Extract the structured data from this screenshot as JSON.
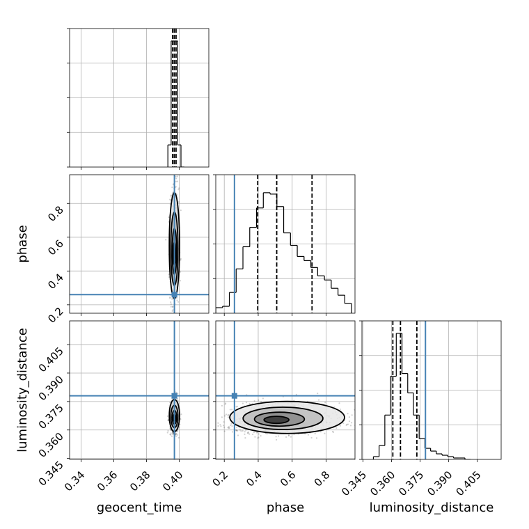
{
  "chart_data": {
    "type": "corner",
    "parameters": [
      "geocent_time",
      "phase",
      "luminosity_distance"
    ],
    "grid": true,
    "colors": {
      "truth": "#4682b4",
      "hist": "#000000",
      "contour": "#000000",
      "grid": "#b0b0b0"
    },
    "truths": {
      "geocent_time": 0.397,
      "phase": 0.26,
      "luminosity_distance": 0.378
    },
    "panels": [
      {
        "id": "hist_geocent_time",
        "type": "histogram",
        "xlim": [
          0.333,
          0.418
        ],
        "xticks": [
          0.34,
          0.36,
          0.38,
          0.4
        ],
        "tick_labels_shown": false,
        "bins": [
          0.393,
          0.395,
          0.397,
          0.399,
          0.401,
          0.403
        ],
        "counts": [
          0.16,
          0.91,
          0.91,
          0.16,
          0.0
        ],
        "quantiles": [
          0.3959,
          0.3969,
          0.398
        ]
      },
      {
        "id": "hist_phase",
        "type": "histogram",
        "xlim": [
          0.15,
          0.97
        ],
        "xticks": [
          0.2,
          0.4,
          0.6,
          0.8
        ],
        "tick_labels_shown": false,
        "bins": [
          0.15,
          0.19,
          0.23,
          0.27,
          0.31,
          0.35,
          0.39,
          0.43,
          0.47,
          0.51,
          0.55,
          0.59,
          0.63,
          0.67,
          0.71,
          0.75,
          0.79,
          0.83,
          0.87,
          0.91,
          0.95
        ],
        "counts": [
          0.04,
          0.05,
          0.15,
          0.32,
          0.48,
          0.62,
          0.76,
          0.87,
          0.86,
          0.77,
          0.58,
          0.49,
          0.41,
          0.38,
          0.33,
          0.27,
          0.24,
          0.18,
          0.13,
          0.07
        ],
        "quantiles": [
          0.397,
          0.509,
          0.717
        ],
        "truth": 0.26
      },
      {
        "id": "hist_luminosity_distance",
        "type": "histogram",
        "xlim": [
          0.3445,
          0.4175
        ],
        "xticks": [
          0.345,
          0.36,
          0.375,
          0.39,
          0.405
        ],
        "xtick_labels": [
          "0.345",
          "0.360",
          "0.375",
          "0.390",
          "0.405"
        ],
        "xlabel": "luminosity_distance",
        "bins": [
          0.3505,
          0.3535,
          0.3565,
          0.3595,
          0.3625,
          0.3655,
          0.3685,
          0.3715,
          0.3745,
          0.3775,
          0.3805,
          0.3835,
          0.3865,
          0.3895,
          0.3925,
          0.3955,
          0.3985,
          0.4015
        ],
        "counts": [
          0.02,
          0.1,
          0.32,
          0.6,
          0.91,
          0.62,
          0.48,
          0.32,
          0.15,
          0.08,
          0.06,
          0.04,
          0.03,
          0.02,
          0.01,
          0.01,
          0.0
        ],
        "quantiles": [
          0.3607,
          0.3647,
          0.3733
        ],
        "truth": 0.3778
      },
      {
        "id": "scatter_geocent_time_phase",
        "type": "2d-density",
        "x": "geocent_time",
        "y": "phase",
        "xlim": [
          0.333,
          0.418
        ],
        "ylim": [
          0.15,
          0.97
        ],
        "yticks": [
          0.2,
          0.4,
          0.6,
          0.8
        ],
        "ytick_labels": [
          "0.2",
          "0.4",
          "0.6",
          "0.8"
        ],
        "ylabel": "phase",
        "center": [
          0.397,
          0.49
        ],
        "spread": [
          0.0013,
          0.13
        ],
        "skew": 0.55
      },
      {
        "id": "scatter_geocent_time_luminosity_distance",
        "type": "2d-density",
        "x": "geocent_time",
        "y": "luminosity_distance",
        "xlim": [
          0.333,
          0.418
        ],
        "ylim": [
          0.3445,
          0.4175
        ],
        "xticks": [
          0.34,
          0.36,
          0.38,
          0.4
        ],
        "xtick_labels": [
          "0.34",
          "0.36",
          "0.38",
          "0.40"
        ],
        "yticks": [
          0.345,
          0.36,
          0.375,
          0.39,
          0.405
        ],
        "ytick_labels": [
          "0.345",
          "0.360",
          "0.375",
          "0.390",
          "0.405"
        ],
        "xlabel": "geocent_time",
        "ylabel": "luminosity_distance",
        "center": [
          0.397,
          0.366
        ],
        "spread": [
          0.0013,
          0.0035
        ],
        "skew": 0.5
      },
      {
        "id": "scatter_phase_luminosity_distance",
        "type": "2d-density",
        "x": "phase",
        "y": "luminosity_distance",
        "xlim": [
          0.15,
          0.97
        ],
        "ylim": [
          0.3445,
          0.4175
        ],
        "xticks": [
          0.2,
          0.4,
          0.6,
          0.8
        ],
        "xtick_labels": [
          "0.2",
          "0.4",
          "0.6",
          "0.8"
        ],
        "xlabel": "phase",
        "center": [
          0.49,
          0.365
        ],
        "spread": [
          0.14,
          0.0035
        ],
        "skew": 0.4
      }
    ]
  }
}
